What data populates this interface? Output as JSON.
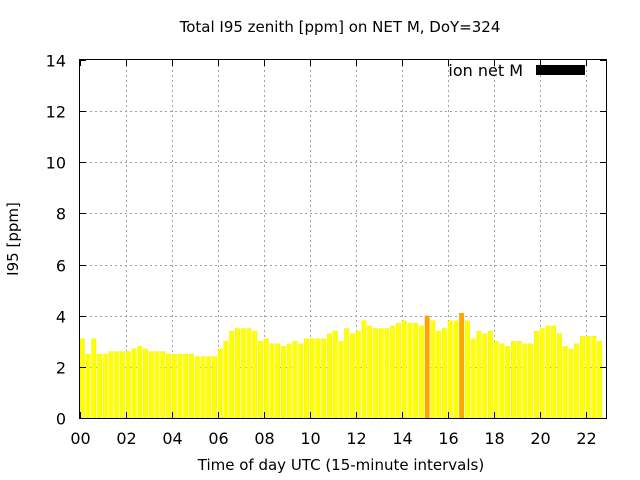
{
  "chart_data": {
    "type": "bar",
    "title": "Total I95 zenith [ppm] on NET M, DoY=324",
    "xlabel": "Time of day UTC (15-minute intervals)",
    "ylabel": "I95 [ppm]",
    "ylim": [
      0,
      14
    ],
    "xlim": [
      0,
      22.875
    ],
    "yticks": [
      "0",
      "2",
      "4",
      "6",
      "8",
      "10",
      "12",
      "14"
    ],
    "xticks": [
      "00",
      "02",
      "04",
      "06",
      "08",
      "10",
      "12",
      "14",
      "16",
      "18",
      "20",
      "22"
    ],
    "grid": true,
    "legend": {
      "label": "ion net M",
      "color": "#000000",
      "placement": "top-right"
    },
    "colors": {
      "normal": "#ffff00",
      "normal_stroke": "#e6e600",
      "high": "#ffa500"
    },
    "bar_interval_hours": 0.25,
    "values": [
      3.1,
      2.5,
      3.1,
      2.5,
      2.5,
      2.6,
      2.6,
      2.6,
      2.6,
      2.7,
      2.8,
      2.7,
      2.6,
      2.6,
      2.6,
      2.5,
      2.5,
      2.5,
      2.5,
      2.5,
      2.4,
      2.4,
      2.4,
      2.4,
      2.7,
      3.0,
      3.4,
      3.5,
      3.5,
      3.5,
      3.4,
      3.0,
      3.1,
      2.9,
      2.9,
      2.8,
      2.9,
      3.0,
      2.9,
      3.1,
      3.1,
      3.1,
      3.1,
      3.3,
      3.4,
      3.0,
      3.5,
      3.3,
      3.4,
      3.8,
      3.6,
      3.5,
      3.5,
      3.5,
      3.6,
      3.7,
      3.8,
      3.7,
      3.7,
      3.6,
      4.0,
      3.8,
      3.4,
      3.5,
      3.8,
      3.8,
      4.1,
      3.8,
      3.1,
      3.4,
      3.3,
      3.4,
      3.0,
      2.9,
      2.8,
      3.0,
      3.0,
      2.9,
      2.9,
      3.4,
      3.5,
      3.6,
      3.6,
      3.3,
      2.8,
      2.7,
      2.9,
      3.2,
      3.2,
      3.2,
      3.0
    ],
    "high_indices": [
      60,
      66
    ]
  }
}
